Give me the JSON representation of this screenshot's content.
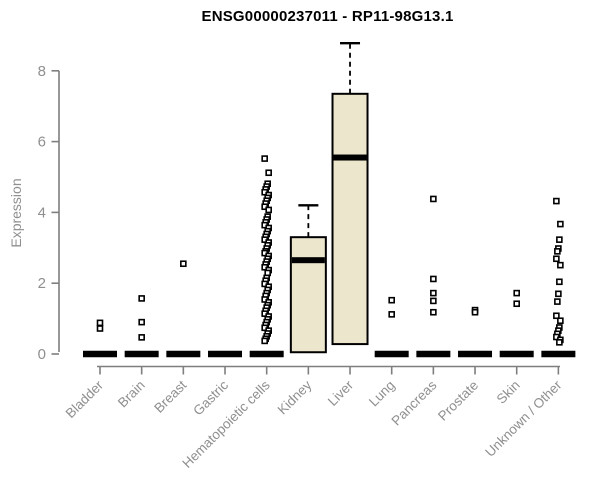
{
  "chart_data": {
    "type": "boxplot",
    "title": "ENSG00000237011 - RP11-98G13.1",
    "ylabel": "Expression",
    "yticks": [
      0,
      2,
      4,
      6,
      8
    ],
    "ylim": [
      0,
      8.8
    ],
    "legend": "none",
    "grid": false,
    "colors": {
      "box_fill": "#ece6cd",
      "box_border": "#000000",
      "median": "#000000",
      "axis": "#7f7f7f",
      "tick_label": "#8f8f8f",
      "title": "#000000"
    },
    "categories": [
      "Bladder",
      "Brain",
      "Breast",
      "Gastric",
      "Hematopoietic cells",
      "Kidney",
      "Liver",
      "Lung",
      "Pancreas",
      "Prostate",
      "Skin",
      "Unknown / Other"
    ],
    "boxes": [
      {
        "category": "Bladder",
        "q1": 0,
        "median": 0,
        "q3": 0,
        "whisker_high": 0,
        "outliers": [
          0.88,
          0.72
        ]
      },
      {
        "category": "Brain",
        "q1": 0,
        "median": 0,
        "q3": 0,
        "whisker_high": 0,
        "outliers": [
          1.57,
          0.9,
          0.47
        ]
      },
      {
        "category": "Breast",
        "q1": 0,
        "median": 0,
        "q3": 0,
        "whisker_high": 0,
        "outliers": [
          2.55
        ]
      },
      {
        "category": "Gastric",
        "q1": 0,
        "median": 0,
        "q3": 0,
        "whisker_high": 0,
        "outliers": []
      },
      {
        "category": "Hematopoietic cells",
        "q1": 0,
        "median": 0,
        "q3": 0,
        "whisker_high": 0,
        "outliers": [
          5.52,
          5.12,
          4.81,
          4.73,
          4.65,
          4.57,
          4.49,
          4.41,
          4.33,
          4.25,
          4.16,
          4.07,
          3.88,
          3.8,
          3.72,
          3.64,
          3.56,
          3.47,
          3.39,
          3.31,
          3.23,
          3.15,
          3.07,
          2.98,
          2.9,
          2.85,
          2.77,
          2.69,
          2.61,
          2.53,
          2.45,
          2.37,
          2.29,
          2.15,
          2.07,
          1.98,
          1.9,
          1.81,
          1.72,
          1.64,
          1.54,
          1.46,
          1.38,
          1.31,
          1.22,
          1.14,
          1.06,
          0.98,
          0.9,
          0.82,
          0.74,
          0.66,
          0.58,
          0.5,
          0.43,
          0.37
        ]
      },
      {
        "category": "Kidney",
        "q1": 0.05,
        "median": 2.65,
        "q3": 3.3,
        "whisker_high": 4.2,
        "outliers": []
      },
      {
        "category": "Liver",
        "q1": 0.28,
        "median": 5.55,
        "q3": 7.35,
        "whisker_high": 8.78,
        "outliers": []
      },
      {
        "category": "Lung",
        "q1": 0,
        "median": 0,
        "q3": 0,
        "whisker_high": 0,
        "outliers": [
          1.52,
          1.12
        ]
      },
      {
        "category": "Pancreas",
        "q1": 0,
        "median": 0,
        "q3": 0,
        "whisker_high": 0,
        "outliers": [
          4.38,
          2.12,
          1.72,
          1.5,
          1.18
        ]
      },
      {
        "category": "Prostate",
        "q1": 0,
        "median": 0,
        "q3": 0,
        "whisker_high": 0,
        "outliers": [
          1.24,
          1.18
        ]
      },
      {
        "category": "Skin",
        "q1": 0,
        "median": 0,
        "q3": 0,
        "whisker_high": 0,
        "outliers": [
          1.72,
          1.42
        ]
      },
      {
        "category": "Unknown / Other",
        "q1": 0,
        "median": 0,
        "q3": 0,
        "whisker_high": 0,
        "outliers": [
          4.32,
          3.67,
          3.23,
          2.98,
          2.9,
          2.69,
          2.51,
          2.04,
          1.7,
          1.48,
          1.08,
          0.94,
          0.75,
          0.66,
          0.57,
          0.48,
          0.4,
          0.33
        ]
      }
    ]
  }
}
